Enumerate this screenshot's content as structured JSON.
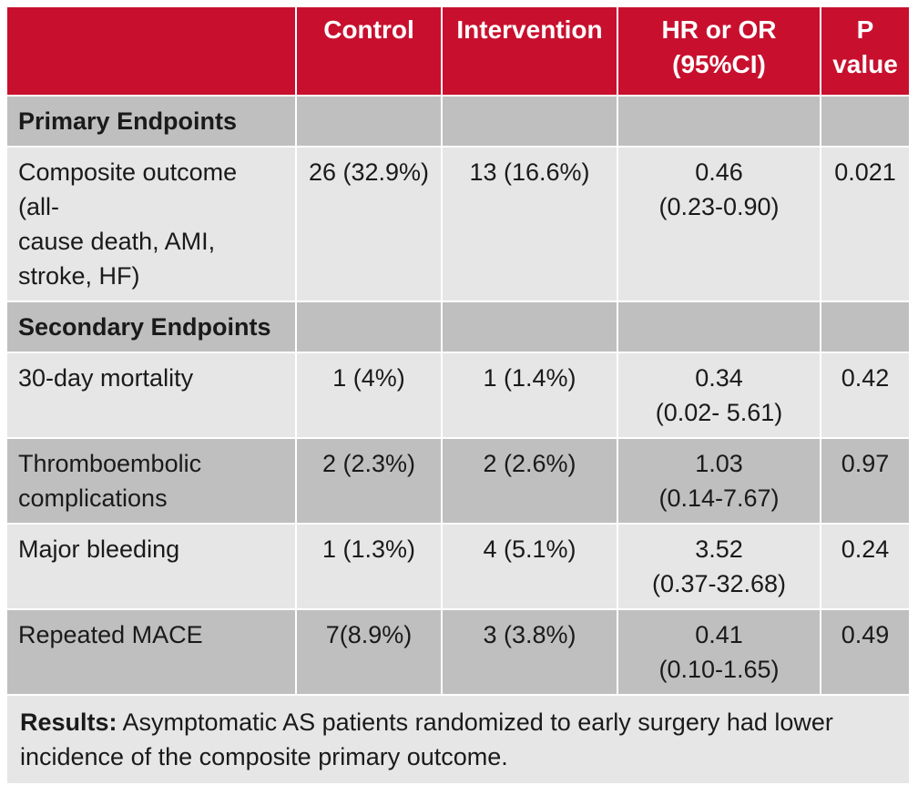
{
  "header": {
    "col1": "",
    "col2": "Control",
    "col3": "Intervention",
    "col4": "HR or OR\n(95%CI)",
    "col5": "P\nvalue"
  },
  "sections": {
    "primary": "Primary Endpoints",
    "secondary": "Secondary Endpoints"
  },
  "rows": [
    {
      "label": "Composite outcome (all-\ncause death, AMI,\nstroke, HF)",
      "control": "26 (32.9%)",
      "intervention": "13 (16.6%)",
      "hr": "0.46\n(0.23-0.90)",
      "p": "0.021"
    },
    {
      "label": "30-day mortality",
      "control": "1 (4%)",
      "intervention": "1 (1.4%)",
      "hr": "0.34\n(0.02- 5.61)",
      "p": "0.42"
    },
    {
      "label": "Thromboembolic\ncomplications",
      "control": "2 (2.3%)",
      "intervention": "2 (2.6%)",
      "hr": "1.03\n(0.14-7.67)",
      "p": "0.97"
    },
    {
      "label": "Major bleeding",
      "control": "1 (1.3%)",
      "intervention": "4 (5.1%)",
      "hr": "3.52\n(0.37-32.68)",
      "p": "0.24"
    },
    {
      "label": "Repeated MACE",
      "control": "7(8.9%)",
      "intervention": "3 (3.8%)",
      "hr": "0.41\n(0.10-1.65)",
      "p": "0.49"
    }
  ],
  "footer": {
    "label": "Results:",
    "text": " Asymptomatic AS patients randomized to early surgery had lower\nincidence of the composite primary outcome."
  }
}
